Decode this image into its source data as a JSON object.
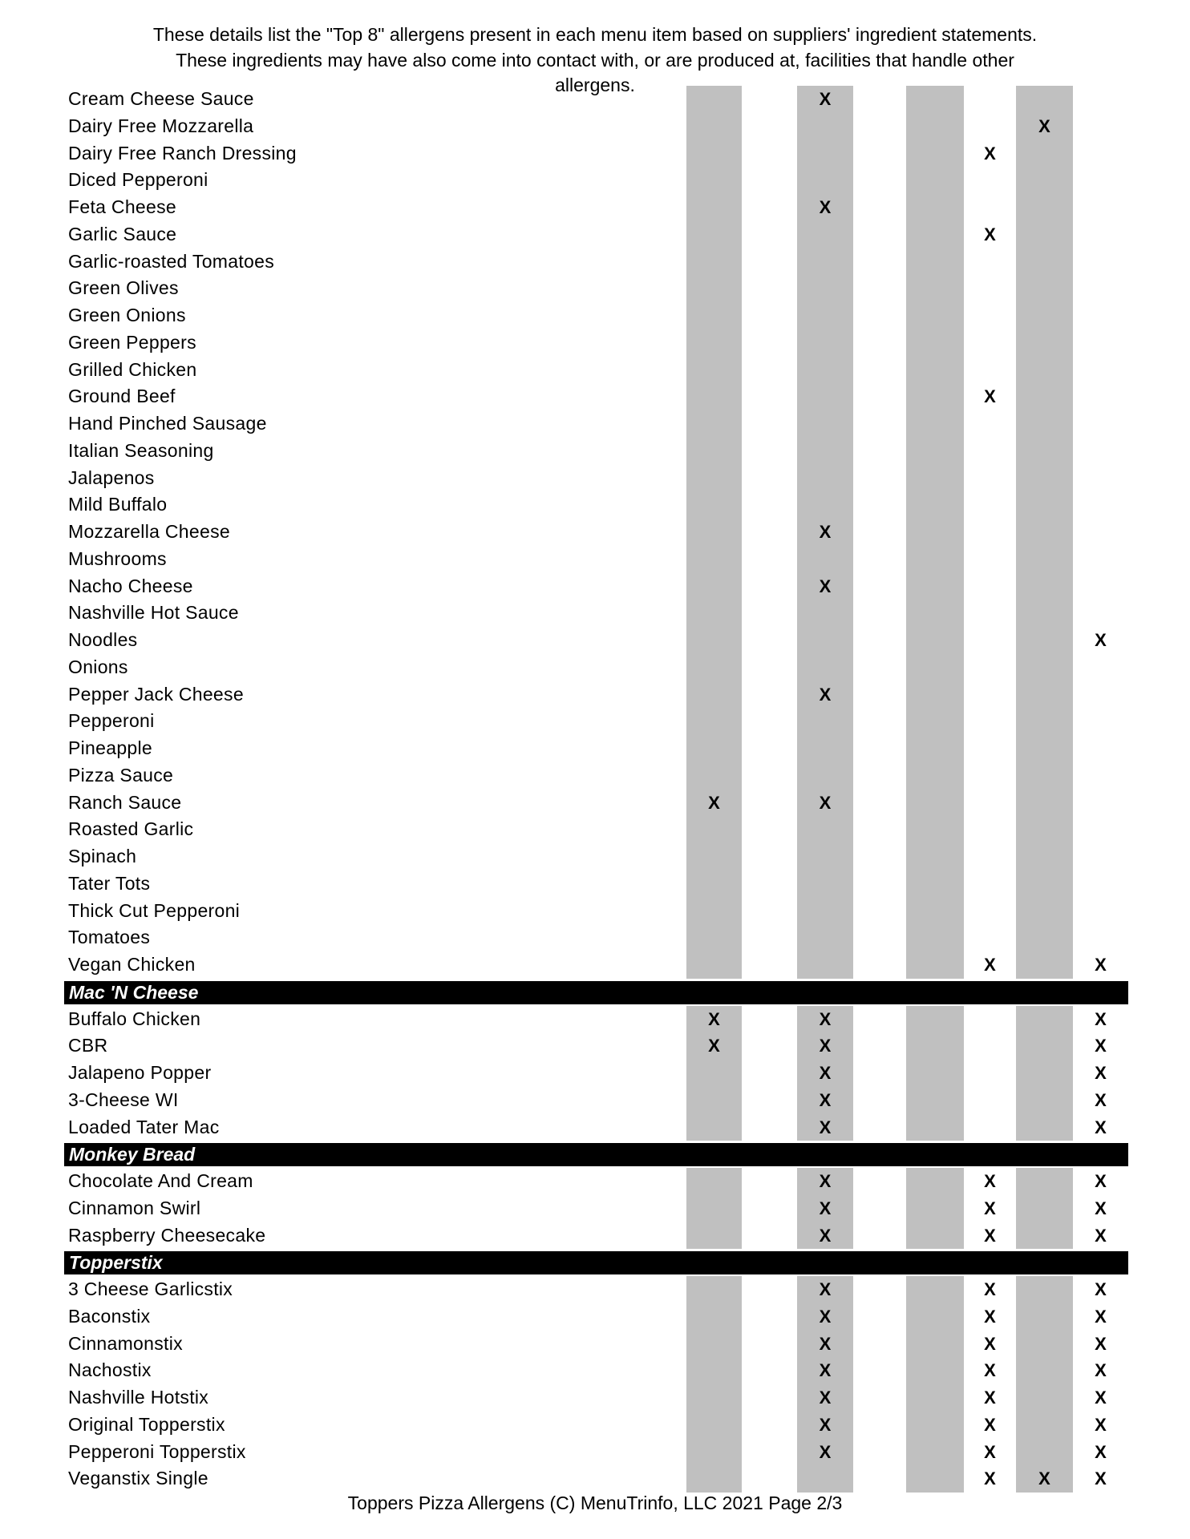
{
  "intro_lines": [
    "These details list the \"Top 8\" allergens present in each menu item based on suppliers' ingredient statements.",
    "These ingredients may have also come into contact with, or are produced at, facilities that handle other",
    "allergens."
  ],
  "column_colors": {
    "shaded": "#c0c0c0",
    "header_bar": "#000000"
  },
  "mark": "X",
  "rows": [
    {
      "label": "Cream Cheese Sauce",
      "marks": [
        3
      ]
    },
    {
      "label": "Dairy Free Mozzarella",
      "marks": [
        7
      ]
    },
    {
      "label": "Dairy Free Ranch Dressing",
      "marks": [
        6
      ]
    },
    {
      "label": "Diced Pepperoni",
      "marks": []
    },
    {
      "label": "Feta Cheese",
      "marks": [
        3
      ]
    },
    {
      "label": "Garlic Sauce",
      "marks": [
        6
      ]
    },
    {
      "label": "Garlic-roasted Tomatoes",
      "marks": []
    },
    {
      "label": "Green Olives",
      "marks": []
    },
    {
      "label": "Green Onions",
      "marks": []
    },
    {
      "label": "Green Peppers",
      "marks": []
    },
    {
      "label": "Grilled Chicken",
      "marks": []
    },
    {
      "label": "Ground Beef",
      "marks": [
        6
      ]
    },
    {
      "label": "Hand Pinched Sausage",
      "marks": []
    },
    {
      "label": "Italian Seasoning",
      "marks": []
    },
    {
      "label": "Jalapenos",
      "marks": []
    },
    {
      "label": "Mild Buffalo",
      "marks": []
    },
    {
      "label": "Mozzarella Cheese",
      "marks": [
        3
      ]
    },
    {
      "label": "Mushrooms",
      "marks": []
    },
    {
      "label": "Nacho Cheese",
      "marks": [
        3
      ]
    },
    {
      "label": "Nashville Hot Sauce",
      "marks": []
    },
    {
      "label": "Noodles",
      "marks": [
        8
      ]
    },
    {
      "label": "Onions",
      "marks": []
    },
    {
      "label": "Pepper Jack Cheese",
      "marks": [
        3
      ]
    },
    {
      "label": "Pepperoni",
      "marks": []
    },
    {
      "label": "Pineapple",
      "marks": []
    },
    {
      "label": "Pizza Sauce",
      "marks": []
    },
    {
      "label": "Ranch Sauce",
      "marks": [
        1,
        3
      ]
    },
    {
      "label": "Roasted Garlic",
      "marks": []
    },
    {
      "label": "Spinach",
      "marks": []
    },
    {
      "label": "Tater Tots",
      "marks": []
    },
    {
      "label": "Thick Cut Pepperoni",
      "marks": []
    },
    {
      "label": "Tomatoes",
      "marks": []
    },
    {
      "label": "Vegan Chicken",
      "marks": [
        6,
        8
      ]
    },
    {
      "header": "Mac 'N Cheese"
    },
    {
      "label": "Buffalo Chicken",
      "marks": [
        1,
        3,
        8
      ]
    },
    {
      "label": "CBR",
      "marks": [
        1,
        3,
        8
      ]
    },
    {
      "label": "Jalapeno Popper",
      "marks": [
        3,
        8
      ]
    },
    {
      "label": "3-Cheese WI",
      "marks": [
        3,
        8
      ]
    },
    {
      "label": "Loaded Tater Mac",
      "marks": [
        3,
        8
      ]
    },
    {
      "header": "Monkey Bread"
    },
    {
      "label": "Chocolate And Cream",
      "marks": [
        3,
        6,
        8
      ]
    },
    {
      "label": "Cinnamon Swirl",
      "marks": [
        3,
        6,
        8
      ]
    },
    {
      "label": "Raspberry Cheesecake",
      "marks": [
        3,
        6,
        8
      ]
    },
    {
      "header": "Topperstix"
    },
    {
      "label": "3 Cheese Garlicstix",
      "marks": [
        3,
        6,
        8
      ]
    },
    {
      "label": "Baconstix",
      "marks": [
        3,
        6,
        8
      ]
    },
    {
      "label": "Cinnamonstix",
      "marks": [
        3,
        6,
        8
      ]
    },
    {
      "label": "Nachostix",
      "marks": [
        3,
        6,
        8
      ]
    },
    {
      "label": "Nashville Hotstix",
      "marks": [
        3,
        6,
        8
      ]
    },
    {
      "label": "Original Topperstix",
      "marks": [
        3,
        6,
        8
      ]
    },
    {
      "label": "Pepperoni Topperstix",
      "marks": [
        3,
        6,
        8
      ]
    },
    {
      "label": "Veganstix Single",
      "marks": [
        6,
        7,
        8
      ]
    }
  ],
  "footer": "Toppers Pizza Allergens (C) MenuTrinfo, LLC 2021 Page 2/3"
}
